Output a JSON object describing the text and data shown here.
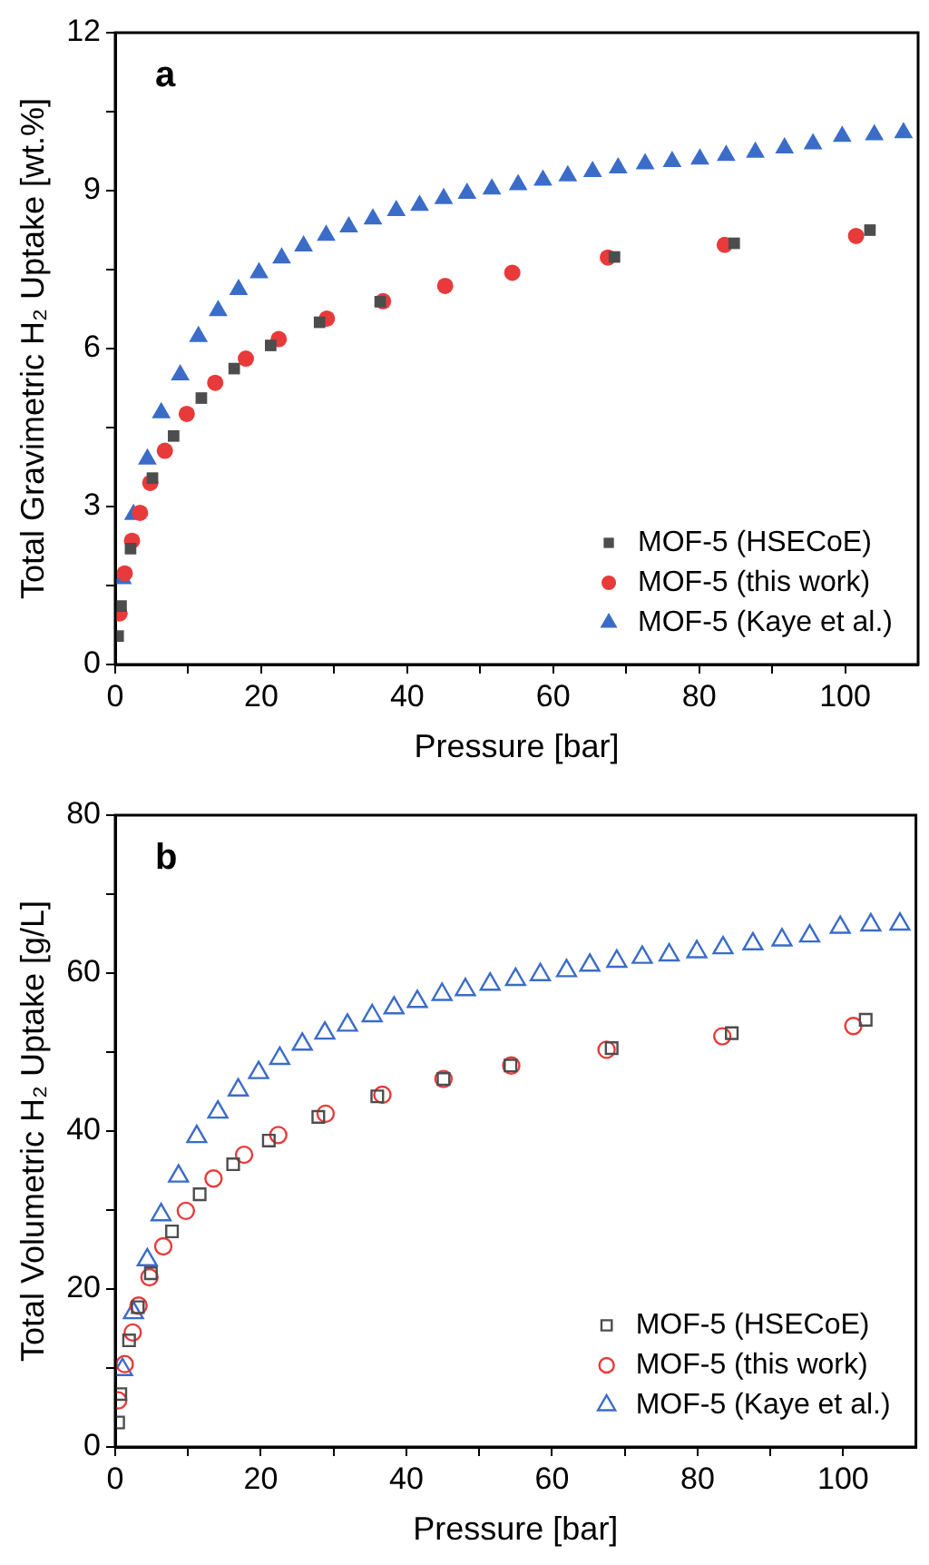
{
  "chart_data": [
    {
      "type": "scatter",
      "xlabel": "Pressure [bar]",
      "ylabel": "Total Gravimetric H₂ Uptake [wt.%]",
      "annotations": [
        "a"
      ],
      "xlim": [
        0,
        110
      ],
      "xticks": [
        0,
        {
          "value": 10,
          "label": null
        },
        20,
        {
          "value": 30,
          "label": null
        },
        40,
        {
          "value": 50,
          "label": null
        },
        60,
        {
          "value": 70,
          "label": null
        },
        80,
        {
          "value": 90,
          "label": null
        },
        100
      ],
      "ylim": [
        0,
        12
      ],
      "yticks": [
        0,
        {
          "value": 1.5,
          "label": null
        },
        3,
        {
          "value": 4.5,
          "label": null
        },
        6,
        {
          "value": 7.5,
          "label": null
        },
        9,
        {
          "value": 10.5,
          "label": null
        },
        12
      ],
      "grid": false,
      "legend": "bottom right",
      "series": [
        {
          "name": "MOF-5 (HSECoE)",
          "color": "#4d4d4d",
          "marker": "square",
          "x": [
            0.4,
            0.8,
            2.1,
            5.1,
            8.0,
            11.8,
            16.3,
            21.3,
            28.0,
            36.3,
            68.4,
            84.8,
            103.4
          ],
          "values": [
            0.54,
            1.11,
            2.2,
            3.54,
            4.34,
            5.06,
            5.62,
            6.06,
            6.5,
            6.89,
            7.74,
            8.0,
            8.25
          ]
        },
        {
          "name": "MOF-5 (this work)",
          "color": "#e83a3a",
          "marker": "circle",
          "x": [
            0.6,
            1.3,
            2.3,
            3.4,
            4.8,
            6.8,
            9.8,
            13.7,
            17.9,
            22.4,
            29.0,
            36.7,
            45.2,
            54.4,
            67.5,
            83.5,
            101.5
          ],
          "values": [
            0.97,
            1.73,
            2.35,
            2.88,
            3.45,
            4.06,
            4.76,
            5.35,
            5.81,
            6.18,
            6.57,
            6.9,
            7.19,
            7.44,
            7.73,
            7.97,
            8.14
          ]
        },
        {
          "name": "MOF-5 (Kaye et al.)",
          "color": "#3a6cc8",
          "marker": "triangle",
          "x": [
            1.0,
            2.5,
            4.4,
            6.3,
            8.9,
            11.4,
            14.1,
            16.9,
            19.7,
            22.8,
            25.8,
            28.9,
            32.0,
            35.3,
            38.5,
            41.7,
            45.0,
            48.2,
            51.6,
            55.2,
            58.6,
            62.0,
            65.4,
            68.9,
            72.6,
            76.3,
            80.1,
            83.7,
            87.7,
            91.7,
            95.6,
            99.6,
            104.0,
            108.0
          ],
          "values": [
            1.63,
            2.85,
            3.9,
            4.78,
            5.5,
            6.23,
            6.72,
            7.12,
            7.44,
            7.72,
            7.95,
            8.15,
            8.31,
            8.46,
            8.62,
            8.72,
            8.85,
            8.95,
            9.03,
            9.11,
            9.2,
            9.28,
            9.36,
            9.43,
            9.51,
            9.55,
            9.6,
            9.67,
            9.73,
            9.81,
            9.89,
            10.03,
            10.06,
            10.1
          ]
        }
      ]
    },
    {
      "type": "scatter",
      "xlabel": "Pressure [bar]",
      "ylabel": "Total Volumetric H₂ Uptake [g/L]",
      "annotations": [
        "b"
      ],
      "xlim": [
        0,
        110
      ],
      "xticks": [
        0,
        {
          "value": 10,
          "label": null
        },
        20,
        {
          "value": 30,
          "label": null
        },
        40,
        {
          "value": 50,
          "label": null
        },
        60,
        {
          "value": 70,
          "label": null
        },
        80,
        {
          "value": 90,
          "label": null
        },
        100
      ],
      "ylim": [
        0,
        80
      ],
      "yticks": [
        0,
        {
          "value": 10,
          "label": null
        },
        20,
        {
          "value": 30,
          "label": null
        },
        40,
        {
          "value": 50,
          "label": null
        },
        60,
        {
          "value": 70,
          "label": null
        },
        80
      ],
      "grid": false,
      "legend": "bottom right",
      "series": [
        {
          "name": "MOF-5 (HSECoE)",
          "color": "#4d4d4d",
          "marker": "square",
          "x": [
            0.4,
            0.7,
            1.9,
            3.1,
            4.9,
            7.8,
            11.6,
            16.2,
            21.1,
            27.9,
            36.0,
            45.1,
            54.3,
            68.2,
            84.7,
            103.1
          ],
          "values": [
            3.1,
            6.7,
            13.5,
            17.7,
            22.0,
            27.3,
            32.0,
            35.8,
            38.8,
            41.8,
            44.4,
            46.6,
            48.3,
            50.5,
            52.4,
            54.1
          ]
        },
        {
          "name": "MOF-5 (this work)",
          "color": "#e83a3a",
          "marker": "circle",
          "x": [
            0.4,
            1.3,
            2.4,
            3.2,
            4.7,
            6.6,
            9.7,
            13.5,
            17.7,
            22.4,
            28.9,
            36.7,
            45.1,
            54.4,
            67.5,
            83.4,
            101.4
          ],
          "values": [
            5.9,
            10.5,
            14.5,
            17.9,
            21.5,
            25.4,
            29.9,
            34.0,
            37.0,
            39.5,
            42.2,
            44.6,
            46.6,
            48.3,
            50.3,
            52.0,
            53.3
          ]
        },
        {
          "name": "MOF-5 (Kaye et al.)",
          "color": "#3a6cc8",
          "marker": "triangle",
          "x": [
            1.0,
            2.5,
            4.4,
            6.3,
            8.7,
            11.2,
            14.1,
            16.9,
            19.7,
            22.6,
            25.7,
            28.8,
            31.9,
            35.3,
            38.3,
            41.5,
            44.9,
            48.1,
            51.5,
            55.0,
            58.4,
            62.0,
            65.2,
            68.9,
            72.4,
            76.1,
            79.9,
            83.5,
            87.6,
            91.6,
            95.4,
            99.6,
            103.8,
            107.8
          ],
          "values": [
            9.8,
            17.0,
            23.7,
            29.4,
            34.3,
            39.3,
            42.4,
            45.2,
            47.4,
            49.2,
            51.0,
            52.4,
            53.4,
            54.6,
            55.6,
            56.4,
            57.3,
            57.9,
            58.6,
            59.2,
            59.8,
            60.3,
            61.0,
            61.5,
            62.0,
            62.3,
            62.7,
            63.2,
            63.7,
            64.2,
            64.7,
            65.8,
            66.1,
            66.2
          ]
        }
      ]
    }
  ]
}
